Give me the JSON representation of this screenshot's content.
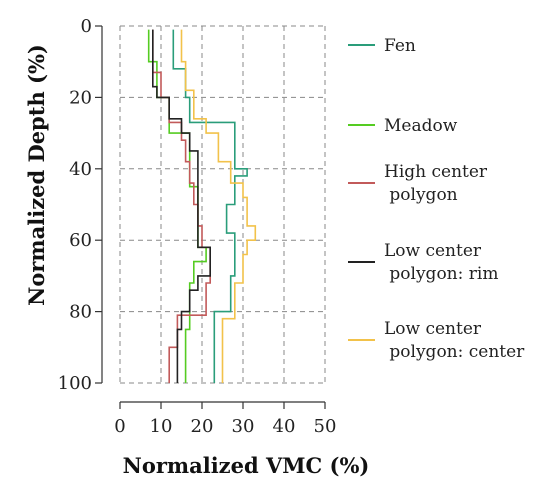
{
  "chart_data": {
    "type": "line",
    "orientation": "profile (x = VMC, y = depth, depth increasing downward)",
    "xlabel": "Normalized VMC (%)",
    "ylabel": "Normalized Depth (%)",
    "xlim": [
      0,
      50
    ],
    "ylim": [
      0,
      100
    ],
    "x_ticks": [
      0,
      10,
      20,
      30,
      40,
      50
    ],
    "y_ticks": [
      0,
      20,
      40,
      60,
      80,
      100
    ],
    "grid": true,
    "grid_style": "dashed",
    "legend_position": "right",
    "series": [
      {
        "name": "Fen",
        "color": "#2a9d7a",
        "points": [
          [
            13,
            1
          ],
          [
            13,
            12
          ],
          [
            16,
            12
          ],
          [
            16,
            20
          ],
          [
            17,
            20
          ],
          [
            17,
            27
          ],
          [
            28,
            27
          ],
          [
            28,
            40
          ],
          [
            31,
            40
          ],
          [
            31,
            42
          ],
          [
            28,
            42
          ],
          [
            28,
            50
          ],
          [
            26,
            50
          ],
          [
            26,
            58
          ],
          [
            28,
            58
          ],
          [
            28,
            70
          ],
          [
            27,
            70
          ],
          [
            27,
            80
          ],
          [
            23,
            80
          ],
          [
            23,
            100
          ]
        ]
      },
      {
        "name": "Meadow",
        "color": "#55cc22",
        "points": [
          [
            7,
            1
          ],
          [
            7,
            10
          ],
          [
            9,
            10
          ],
          [
            9,
            20
          ],
          [
            12,
            20
          ],
          [
            12,
            30
          ],
          [
            17,
            30
          ],
          [
            17,
            45
          ],
          [
            19,
            45
          ],
          [
            19,
            62
          ],
          [
            21,
            62
          ],
          [
            21,
            66
          ],
          [
            18,
            66
          ],
          [
            18,
            72
          ],
          [
            17,
            72
          ],
          [
            17,
            85
          ],
          [
            16,
            85
          ],
          [
            16,
            100
          ]
        ]
      },
      {
        "name": "High center polygon",
        "color": "#c25a5a",
        "points": [
          [
            8,
            1
          ],
          [
            8,
            13
          ],
          [
            10,
            13
          ],
          [
            10,
            20
          ],
          [
            12,
            20
          ],
          [
            12,
            27
          ],
          [
            15,
            27
          ],
          [
            15,
            32
          ],
          [
            16,
            32
          ],
          [
            16,
            38
          ],
          [
            17,
            38
          ],
          [
            17,
            44
          ],
          [
            18,
            44
          ],
          [
            18,
            50
          ],
          [
            19,
            50
          ],
          [
            19,
            56
          ],
          [
            20,
            56
          ],
          [
            20,
            62
          ],
          [
            22,
            62
          ],
          [
            22,
            72
          ],
          [
            21,
            72
          ],
          [
            21,
            81
          ],
          [
            14,
            81
          ],
          [
            14,
            90
          ],
          [
            12,
            90
          ],
          [
            12,
            100
          ]
        ]
      },
      {
        "name": "Low center polygon: rim",
        "color": "#222222",
        "points": [
          [
            8,
            1
          ],
          [
            8,
            17
          ],
          [
            9,
            17
          ],
          [
            9,
            20
          ],
          [
            12,
            20
          ],
          [
            12,
            26
          ],
          [
            15,
            26
          ],
          [
            15,
            30
          ],
          [
            17,
            30
          ],
          [
            17,
            35
          ],
          [
            19,
            35
          ],
          [
            19,
            62
          ],
          [
            22,
            62
          ],
          [
            22,
            70
          ],
          [
            19,
            70
          ],
          [
            19,
            74
          ],
          [
            17,
            74
          ],
          [
            17,
            80
          ],
          [
            15,
            80
          ],
          [
            15,
            85
          ],
          [
            14,
            85
          ],
          [
            14,
            100
          ]
        ]
      },
      {
        "name": "Low center polygon: center",
        "color": "#f2c24a",
        "points": [
          [
            15,
            1
          ],
          [
            15,
            10
          ],
          [
            16,
            10
          ],
          [
            16,
            18
          ],
          [
            18,
            18
          ],
          [
            18,
            26
          ],
          [
            21,
            26
          ],
          [
            21,
            30
          ],
          [
            24,
            30
          ],
          [
            24,
            38
          ],
          [
            27,
            38
          ],
          [
            27,
            44
          ],
          [
            30,
            44
          ],
          [
            30,
            48
          ],
          [
            31,
            48
          ],
          [
            31,
            56
          ],
          [
            33,
            56
          ],
          [
            33,
            60
          ],
          [
            31,
            60
          ],
          [
            31,
            64
          ],
          [
            30,
            64
          ],
          [
            30,
            72
          ],
          [
            28,
            72
          ],
          [
            28,
            82
          ],
          [
            25,
            82
          ],
          [
            25,
            100
          ]
        ]
      }
    ]
  }
}
